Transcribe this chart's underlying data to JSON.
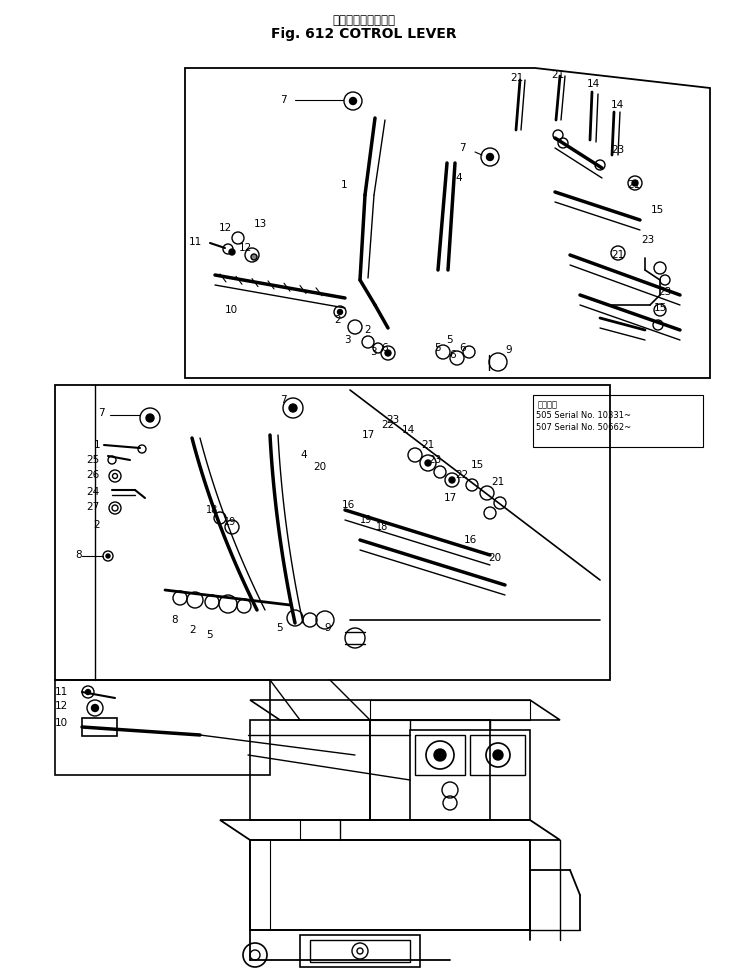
{
  "title_japanese": "コントロールレバー",
  "title_english": "Fig. 612 COTROL LEVER",
  "bg_color": "#ffffff",
  "line_color": "#000000",
  "serial_line1": "適用号機",
  "serial_line2": "505 Serial No. 10331~",
  "serial_line3": "507 Serial No. 50662~",
  "fig_width": 7.29,
  "fig_height": 9.75,
  "dpi": 100
}
